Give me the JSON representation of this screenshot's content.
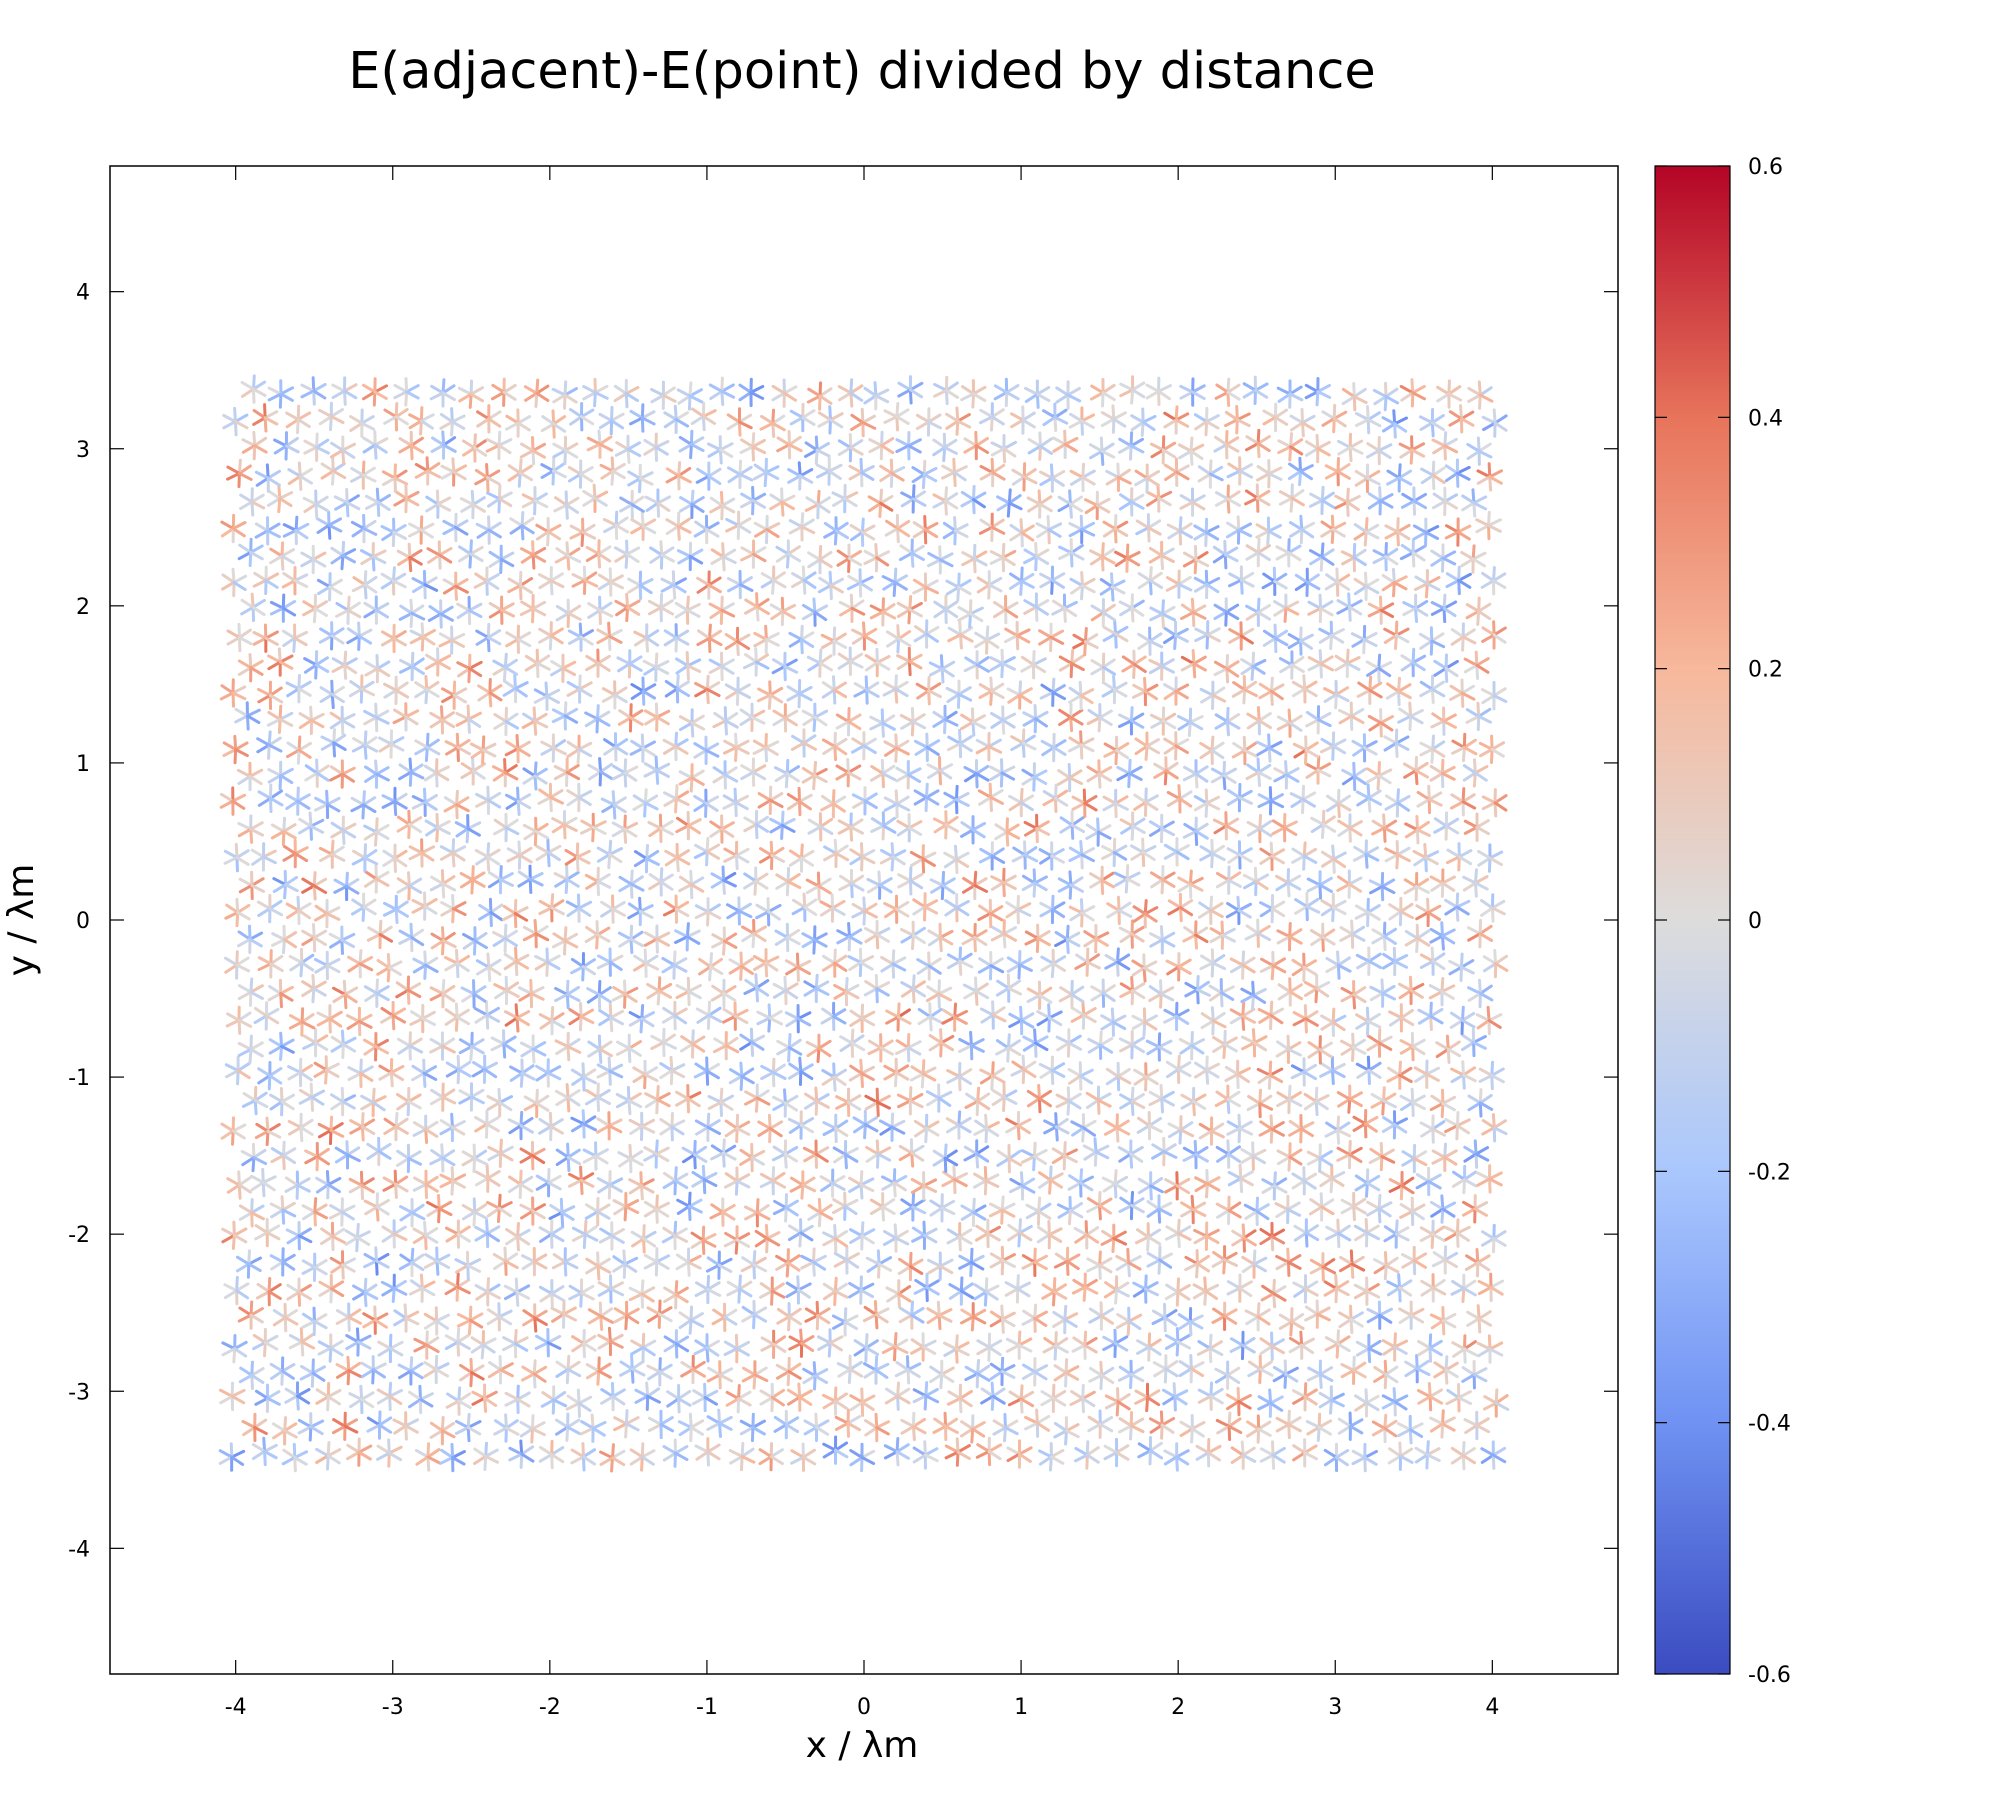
{
  "chart_data": {
    "type": "vector-field",
    "title": "E(adjacent)-E(point) divided by distance",
    "xlabel": "x / λm",
    "ylabel": "y / λm",
    "xlim": [
      -4.8,
      4.8
    ],
    "ylim": [
      -4.8,
      4.8
    ],
    "xticks": [
      "-4",
      "-3",
      "-2",
      "-1",
      "0",
      "1",
      "2",
      "3",
      "4"
    ],
    "yticks": [
      "4",
      "3",
      "2",
      "1",
      "0",
      "-1",
      "-2",
      "-3",
      "-4"
    ],
    "colorbar": {
      "range": [
        -0.6,
        0.6
      ],
      "ticks": [
        "0.6",
        "0.4",
        "0.2",
        "0",
        "-0.2",
        "-0.4",
        "-0.6"
      ],
      "colormap": "coolwarm",
      "colors": [
        "#3b4cc0",
        "#6f92f3",
        "#aac7fd",
        "#dddcdc",
        "#f7b89c",
        "#e7745b",
        "#b40426"
      ]
    },
    "lattice": {
      "type": "triangular",
      "spacing": 0.2,
      "neighbors": 6,
      "x_range": [
        -4.0,
        4.0
      ],
      "y_range": [
        -3.4,
        3.4
      ]
    },
    "grid": false,
    "legend": "none"
  }
}
